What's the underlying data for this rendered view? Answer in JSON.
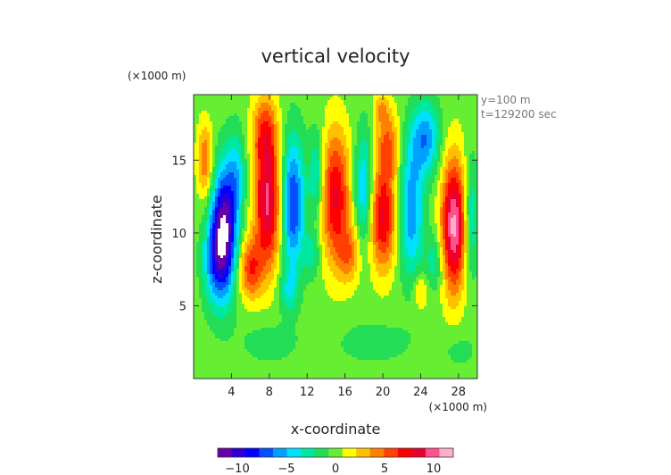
{
  "chart_data": {
    "type": "heatmap",
    "title": "vertical velocity",
    "xlabel": "x-coordinate",
    "ylabel": "z-coordinate",
    "x_unit_label": "(×1000 m)",
    "y_unit_label": "(×1000 m)",
    "annotations": [
      "y=100 m",
      "t=129200 sec"
    ],
    "xlim": [
      0,
      30
    ],
    "ylim": [
      0,
      19.5
    ],
    "x_ticks": [
      4,
      8,
      12,
      16,
      20,
      24,
      28
    ],
    "y_ticks": [
      5,
      10,
      15
    ],
    "colorbar": {
      "ticks": [
        -10,
        -5,
        0,
        5,
        10
      ],
      "range": [
        -12,
        12
      ],
      "colors": [
        "#6a00a8",
        "#2b00d6",
        "#0000ff",
        "#0050ff",
        "#00a0ff",
        "#00e0ff",
        "#00e8a0",
        "#22dd55",
        "#66ee33",
        "#ffff00",
        "#ffc000",
        "#ff8000",
        "#ff4000",
        "#ff0000",
        "#e80030",
        "#ff5090",
        "#ffb0c8"
      ]
    },
    "features": [
      {
        "x": 3.2,
        "z": 10.0,
        "w": -12.5,
        "sx": 1.3,
        "sz": 4.2
      },
      {
        "x": 2.0,
        "z": 8.0,
        "w": -4,
        "sx": 1.2,
        "sz": 3
      },
      {
        "x": 1.2,
        "z": 15.0,
        "w": 5,
        "sx": 0.8,
        "sz": 2.5
      },
      {
        "x": 7.8,
        "z": 12.0,
        "w": 9.5,
        "sx": 1.4,
        "sz": 4.5
      },
      {
        "x": 6.0,
        "z": 7.5,
        "w": 6,
        "sx": 1.2,
        "sz": 2
      },
      {
        "x": 7.5,
        "z": 17.0,
        "w": 5,
        "sx": 1.3,
        "sz": 2.5
      },
      {
        "x": 10.5,
        "z": 12.0,
        "w": -8,
        "sx": 1.2,
        "sz": 4.5
      },
      {
        "x": 10.0,
        "z": 6.0,
        "w": -3,
        "sx": 1.0,
        "sz": 1.5
      },
      {
        "x": 15.0,
        "z": 12.5,
        "w": 8,
        "sx": 1.5,
        "sz": 4.5
      },
      {
        "x": 16.5,
        "z": 8.5,
        "w": 4,
        "sx": 1.2,
        "sz": 2
      },
      {
        "x": 18.0,
        "z": 13.0,
        "w": -5,
        "sx": 1.0,
        "sz": 4
      },
      {
        "x": 20.0,
        "z": 11.0,
        "w": 8,
        "sx": 1.4,
        "sz": 3.5
      },
      {
        "x": 20.5,
        "z": 16.0,
        "w": 5,
        "sx": 1.2,
        "sz": 2.5
      },
      {
        "x": 23.0,
        "z": 11.5,
        "w": -6,
        "sx": 1.3,
        "sz": 4.5
      },
      {
        "x": 24.5,
        "z": 16.5,
        "w": -6,
        "sx": 1.5,
        "sz": 2.5
      },
      {
        "x": 19.8,
        "z": 18.5,
        "w": 3,
        "sx": 0.8,
        "sz": 1
      },
      {
        "x": 27.5,
        "z": 10.5,
        "w": 11,
        "sx": 1.3,
        "sz": 4.5
      },
      {
        "x": 25.5,
        "z": 8.0,
        "w": -3,
        "sx": 1.0,
        "sz": 2
      },
      {
        "x": 24.0,
        "z": 6.0,
        "w": 3,
        "sx": 0.8,
        "sz": 1.2
      },
      {
        "x": 29.3,
        "z": 11.0,
        "w": -4,
        "sx": 0.8,
        "sz": 4
      },
      {
        "x": 12.5,
        "z": 8.5,
        "w": -3,
        "sx": 0.8,
        "sz": 1.5
      },
      {
        "x": 13.0,
        "z": 14.0,
        "w": -4,
        "sx": 0.8,
        "sz": 3
      },
      {
        "x": 4.5,
        "z": 14.0,
        "w": -4,
        "sx": 1.0,
        "sz": 3
      },
      {
        "x": 8.0,
        "z": 2.5,
        "w": -1.5,
        "sx": 3,
        "sz": 1.5
      },
      {
        "x": 19.0,
        "z": 2.5,
        "w": -1.5,
        "sx": 4,
        "sz": 1.5
      },
      {
        "x": 28.0,
        "z": 2.0,
        "w": -1.2,
        "sx": 2,
        "sz": 1.5
      }
    ]
  }
}
